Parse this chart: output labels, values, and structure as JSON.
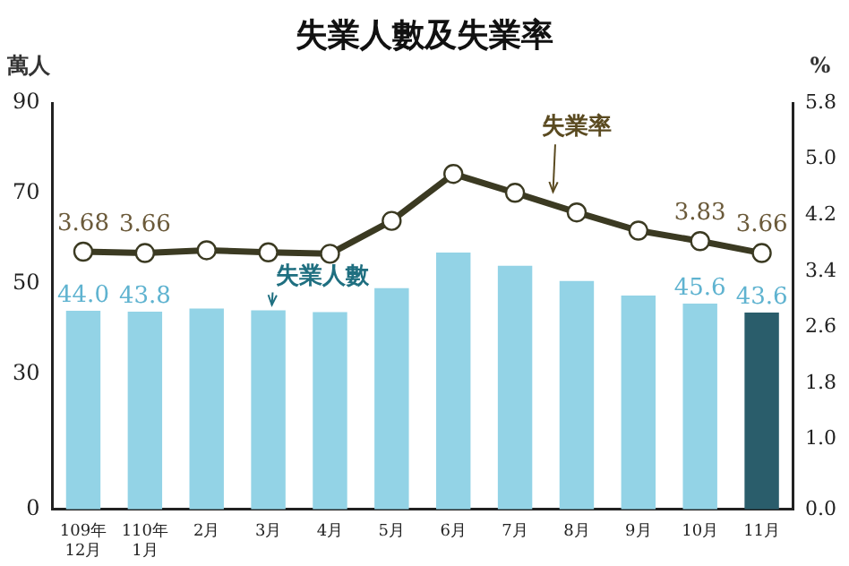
{
  "chart_data": {
    "type": "bar",
    "title": "失業人數及失業率",
    "ylabel": "萬人",
    "y2label": "%",
    "categories": [
      "109年\n12月",
      "110年\n1月",
      "2月",
      "3月",
      "4月",
      "5月",
      "6月",
      "7月",
      "8月",
      "9月",
      "10月",
      "11月"
    ],
    "series": [
      {
        "name": "失業人數",
        "colors": [
          "#93d3e6",
          "#93d3e6",
          "#93d3e6",
          "#93d3e6",
          "#93d3e6",
          "#93d3e6",
          "#93d3e6",
          "#93d3e6",
          "#93d3e6",
          "#93d3e6",
          "#93d3e6",
          "#2a5d6b"
        ],
        "values": [
          44.0,
          43.8,
          44.5,
          44.1,
          43.7,
          49.0,
          56.9,
          54.0,
          50.6,
          47.4,
          45.6,
          43.6
        ],
        "value_labels": [
          "44.0",
          "43.8",
          null,
          null,
          null,
          null,
          null,
          null,
          null,
          null,
          "45.6",
          "43.6"
        ]
      },
      {
        "name": "失業率",
        "type": "line",
        "axis": "y2",
        "color": "#3b3a22",
        "marker": "circle",
        "values": [
          3.68,
          3.66,
          3.7,
          3.67,
          3.65,
          4.12,
          4.79,
          4.52,
          4.24,
          3.98,
          3.83,
          3.66
        ],
        "value_labels": [
          "3.68",
          "3.66",
          null,
          null,
          null,
          null,
          null,
          null,
          null,
          null,
          "3.83",
          "3.66"
        ]
      }
    ],
    "ylim": [
      0,
      90
    ],
    "yticks": [
      0,
      30,
      50,
      70,
      90
    ],
    "y2lim": [
      0,
      5.8
    ],
    "y2ticks": [
      {
        "value": 0,
        "label": "0.0"
      },
      {
        "value": 1,
        "label": "1.0"
      },
      1.8,
      2.6,
      3.4,
      4.2,
      {
        "value": 5,
        "label": "5.0"
      },
      5.8
    ],
    "grid": false,
    "legend": false
  }
}
